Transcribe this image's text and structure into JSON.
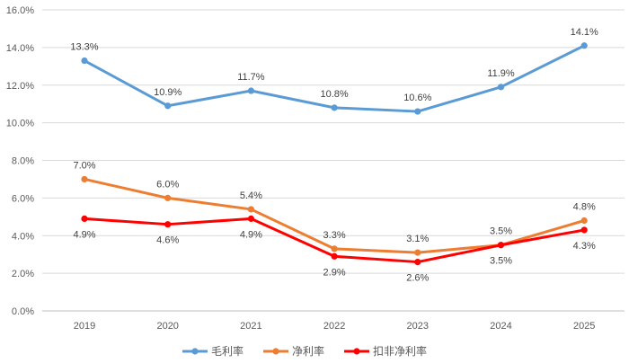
{
  "chart_data": {
    "type": "line",
    "title": "",
    "xlabel": "",
    "ylabel": "",
    "categories": [
      "2019",
      "2020",
      "2021",
      "2022",
      "2023",
      "2024",
      "2025"
    ],
    "ylim": [
      0,
      16
    ],
    "ytick_step": 2,
    "ytick_labels": [
      "0.0%",
      "2.0%",
      "4.0%",
      "6.0%",
      "8.0%",
      "10.0%",
      "12.0%",
      "14.0%",
      "16.0%"
    ],
    "grid": true,
    "legend_position": "bottom-center",
    "series": [
      {
        "name": "毛利率",
        "color": "#5B9BD5",
        "values": [
          13.3,
          10.9,
          11.7,
          10.8,
          10.6,
          11.9,
          14.1
        ],
        "labels": [
          "13.3%",
          "10.9%",
          "11.7%",
          "10.8%",
          "10.6%",
          "11.9%",
          "14.1%"
        ],
        "label_side": [
          "above",
          "above",
          "above",
          "above",
          "above",
          "above",
          "above"
        ]
      },
      {
        "name": "净利率",
        "color": "#ED7D31",
        "values": [
          7.0,
          6.0,
          5.4,
          3.3,
          3.1,
          3.5,
          4.8
        ],
        "labels": [
          "7.0%",
          "6.0%",
          "5.4%",
          "3.3%",
          "3.1%",
          "3.5%",
          "4.8%"
        ],
        "label_side": [
          "above",
          "above",
          "above",
          "above",
          "above",
          "above",
          "above"
        ]
      },
      {
        "name": "扣非净利率",
        "color": "#FF0000",
        "values": [
          4.9,
          4.6,
          4.9,
          2.9,
          2.6,
          3.5,
          4.3
        ],
        "labels": [
          "4.9%",
          "4.6%",
          "4.9%",
          "2.9%",
          "2.6%",
          "3.5%",
          "4.3%"
        ],
        "label_side": [
          "below",
          "below",
          "below",
          "below",
          "below",
          "below",
          "below"
        ]
      }
    ]
  }
}
